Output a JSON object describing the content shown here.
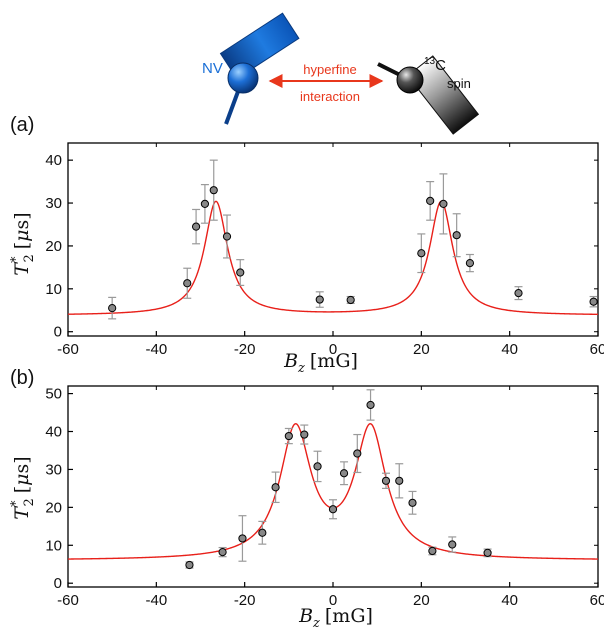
{
  "diagram": {
    "nv_label": "NV",
    "hyperfine_label": "hyperfine",
    "interaction_label": "interaction",
    "c13_label": "13C",
    "c13_superscript": "13",
    "c13_element": "C",
    "spin_label": "spin",
    "colors": {
      "nv": "#1a6fd6",
      "arrow": "#e8371c",
      "c13": "#222222"
    }
  },
  "chart_data": [
    {
      "panel": "(a)",
      "type": "scatter",
      "xlabel": "B_z [mG]",
      "xlabel_var": "B",
      "xlabel_sub": "z",
      "xlabel_unit": "[mG]",
      "ylabel": "T_2^* [μs]",
      "ylabel_var": "T",
      "ylabel_sub": "2",
      "ylabel_sup": "*",
      "ylabel_unit_open": "[",
      "ylabel_unit_mu": "μ",
      "ylabel_unit_close": "s]",
      "xlim": [
        -60,
        60
      ],
      "ylim": [
        -1,
        44
      ],
      "xticks": [
        -60,
        -40,
        -20,
        0,
        20,
        40,
        60
      ],
      "xtick_labels": [
        "-60",
        "-40",
        "-20",
        "0",
        "20",
        "40",
        "60"
      ],
      "yticks": [
        0,
        10,
        20,
        30,
        40
      ],
      "ytick_labels": [
        "0",
        "10",
        "20",
        "30",
        "40"
      ],
      "colors": {
        "fit": "#e8201a",
        "points": "#888888",
        "errorbar": "#9a9a9a"
      },
      "points": [
        {
          "x": -50,
          "y": 5.5,
          "err": 2.5
        },
        {
          "x": -33,
          "y": 11.3,
          "err": 3.5
        },
        {
          "x": -31,
          "y": 24.5,
          "err": 4.0
        },
        {
          "x": -29,
          "y": 29.8,
          "err": 4.5
        },
        {
          "x": -27,
          "y": 33.0,
          "err": 7.0
        },
        {
          "x": -24,
          "y": 22.2,
          "err": 5.0
        },
        {
          "x": -21,
          "y": 13.8,
          "err": 3.0
        },
        {
          "x": -3,
          "y": 7.5,
          "err": 1.8
        },
        {
          "x": 4,
          "y": 7.4,
          "err": 0.8
        },
        {
          "x": 20,
          "y": 18.3,
          "err": 4.5
        },
        {
          "x": 22,
          "y": 30.5,
          "err": 4.5
        },
        {
          "x": 25,
          "y": 29.8,
          "err": 7.0
        },
        {
          "x": 28,
          "y": 22.5,
          "err": 5.0
        },
        {
          "x": 31,
          "y": 16.0,
          "err": 2.0
        },
        {
          "x": 42,
          "y": 9.0,
          "err": 1.5
        },
        {
          "x": 59,
          "y": 7.0,
          "err": 1.2
        }
      ],
      "fit": {
        "baseline": 3.8,
        "peaks": [
          {
            "center": -26.5,
            "amplitude": 26.5,
            "width": 3.2
          },
          {
            "center": 24.5,
            "amplitude": 26.5,
            "width": 3.2
          }
        ]
      }
    },
    {
      "panel": "(b)",
      "type": "scatter",
      "xlabel": "B_z [mG]",
      "xlabel_var": "B",
      "xlabel_sub": "z",
      "xlabel_unit": "[mG]",
      "ylabel": "T_2^* [μs]",
      "ylabel_var": "T",
      "ylabel_sub": "2",
      "ylabel_sup": "*",
      "ylabel_unit_open": "[",
      "ylabel_unit_mu": "μ",
      "ylabel_unit_close": "s]",
      "xlim": [
        -60,
        60
      ],
      "ylim": [
        -1,
        52
      ],
      "xticks": [
        -60,
        -40,
        -20,
        0,
        20,
        40,
        60
      ],
      "xtick_labels": [
        "-60",
        "-40",
        "-20",
        "0",
        "20",
        "40",
        "60"
      ],
      "yticks": [
        0,
        10,
        20,
        30,
        40,
        50
      ],
      "ytick_labels": [
        "0",
        "10",
        "20",
        "30",
        "40",
        "50"
      ],
      "colors": {
        "fit": "#e8201a",
        "points": "#888888",
        "errorbar": "#9a9a9a"
      },
      "points": [
        {
          "x": -32.5,
          "y": 4.8,
          "err": 0.8
        },
        {
          "x": -25,
          "y": 8.2,
          "err": 1.2
        },
        {
          "x": -20.5,
          "y": 11.8,
          "err": 6.0
        },
        {
          "x": -16,
          "y": 13.3,
          "err": 3.0
        },
        {
          "x": -13,
          "y": 25.3,
          "err": 4.0
        },
        {
          "x": -10,
          "y": 38.8,
          "err": 2.0
        },
        {
          "x": -6.5,
          "y": 39.2,
          "err": 2.5
        },
        {
          "x": -3.5,
          "y": 30.8,
          "err": 4.0
        },
        {
          "x": 0,
          "y": 19.5,
          "err": 2.5
        },
        {
          "x": 2.5,
          "y": 29.0,
          "err": 3.0
        },
        {
          "x": 5.5,
          "y": 34.2,
          "err": 5.0
        },
        {
          "x": 8.5,
          "y": 47.0,
          "err": 4.0
        },
        {
          "x": 12,
          "y": 27.0,
          "err": 2.0
        },
        {
          "x": 15,
          "y": 27.0,
          "err": 4.5
        },
        {
          "x": 18,
          "y": 21.2,
          "err": 3.0
        },
        {
          "x": 22.5,
          "y": 8.5,
          "err": 1.0
        },
        {
          "x": 27,
          "y": 10.2,
          "err": 2.0
        },
        {
          "x": 35,
          "y": 8.0,
          "err": 1.0
        }
      ],
      "fit": {
        "baseline": 6.0,
        "peaks": [
          {
            "center": -8.5,
            "amplitude": 34.0,
            "width": 4.3
          },
          {
            "center": 8.5,
            "amplitude": 34.0,
            "width": 4.3
          }
        ]
      }
    }
  ]
}
